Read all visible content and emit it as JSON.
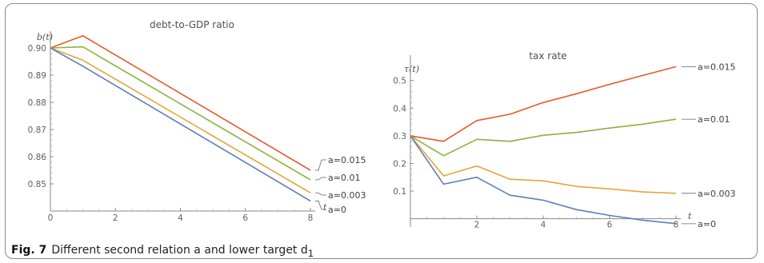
{
  "caption": {
    "label": "Fig. 7",
    "text": "Different second relation a and lower target d",
    "subscript": "1"
  },
  "chart_data": [
    {
      "type": "line",
      "title": "debt-to-GDP ratio",
      "xlabel": "t",
      "ylabel": "b(t)",
      "xlim": [
        0,
        8
      ],
      "ylim": [
        0.84,
        0.905
      ],
      "xticks": [
        0,
        2,
        4,
        6,
        8
      ],
      "yticks": [
        0.85,
        0.86,
        0.87,
        0.88,
        0.89,
        0.9
      ],
      "ytick_labels": [
        "0.85",
        "0.86",
        "0.87",
        "0.88",
        "0.89",
        "0.90"
      ],
      "series": [
        {
          "name": "a=0.015",
          "color": "#e8592d",
          "x": [
            0,
            1,
            8
          ],
          "y": [
            0.9,
            0.9045,
            0.855
          ]
        },
        {
          "name": "a=0.01",
          "color": "#8ab33c",
          "x": [
            0,
            1,
            8
          ],
          "y": [
            0.9,
            0.9004,
            0.8515
          ]
        },
        {
          "name": "a=0.003",
          "color": "#e8a43a",
          "x": [
            0,
            1,
            8
          ],
          "y": [
            0.9,
            0.8955,
            0.8467
          ]
        },
        {
          "name": "a=0",
          "color": "#5b7fb8",
          "x": [
            0,
            1,
            8
          ],
          "y": [
            0.9,
            0.8933,
            0.8437
          ]
        }
      ]
    },
    {
      "type": "line",
      "title": "tax rate",
      "xlabel": "t",
      "ylabel": "τ(t)",
      "xlim": [
        0,
        8
      ],
      "ylim": [
        -0.03,
        0.58
      ],
      "xticks": [
        2,
        4,
        6,
        8
      ],
      "yticks": [
        0.1,
        0.2,
        0.3,
        0.4,
        0.5
      ],
      "ytick_labels": [
        "0.1",
        "0.2",
        "0.3",
        "0.4",
        "0.5"
      ],
      "series": [
        {
          "name": "a=0.015",
          "color": "#e8592d",
          "x": [
            0,
            1,
            2,
            3,
            4,
            5,
            6,
            7,
            8
          ],
          "y": [
            0.3,
            0.28,
            0.355,
            0.378,
            0.42,
            0.452,
            0.486,
            0.518,
            0.55
          ]
        },
        {
          "name": "a=0.01",
          "color": "#8ab33c",
          "x": [
            0,
            1,
            2,
            3,
            4,
            5,
            6,
            7,
            8
          ],
          "y": [
            0.3,
            0.228,
            0.287,
            0.28,
            0.302,
            0.312,
            0.328,
            0.342,
            0.36
          ]
        },
        {
          "name": "a=0.003",
          "color": "#e8a43a",
          "x": [
            0,
            1,
            2,
            3,
            4,
            5,
            6,
            7,
            8
          ],
          "y": [
            0.3,
            0.155,
            0.191,
            0.143,
            0.137,
            0.117,
            0.108,
            0.097,
            0.092
          ]
        },
        {
          "name": "a=0",
          "color": "#5b7fb8",
          "x": [
            0,
            1,
            2,
            3,
            4,
            5,
            6,
            7,
            8
          ],
          "y": [
            0.3,
            0.125,
            0.15,
            0.085,
            0.067,
            0.033,
            0.012,
            -0.005,
            -0.018
          ]
        }
      ]
    }
  ]
}
